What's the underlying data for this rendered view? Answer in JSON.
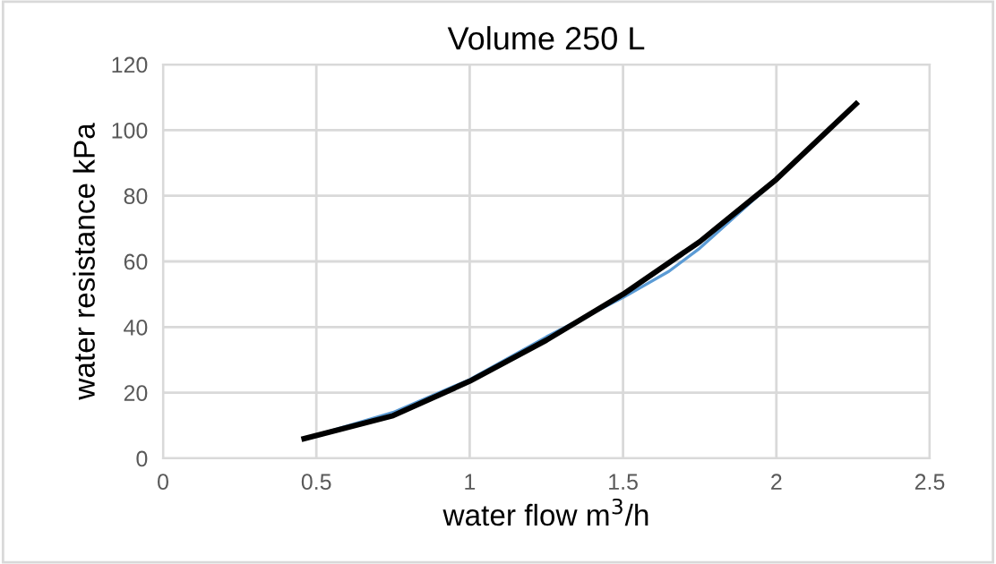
{
  "chart_data": {
    "type": "line",
    "title": "Volume 250 L",
    "xlabel": "water flow m$^{3}$/h",
    "ylabel": "water resistance kPa",
    "series": [
      {
        "color": "#5b9bd5",
        "x": [
          0.46,
          0.75,
          1.0,
          1.25,
          1.5,
          1.65,
          1.75,
          2.0,
          2.26
        ],
        "values": [
          6,
          14,
          24,
          37,
          49,
          57,
          64,
          85,
          108
        ]
      },
      {
        "type": "line",
        "color": "#000000",
        "x": [
          0.46,
          0.75,
          1.0,
          1.25,
          1.5,
          1.75,
          2.0,
          2.26
        ],
        "values": [
          6,
          13,
          23.5,
          36,
          50,
          66,
          85,
          108
        ]
      }
    ],
    "xlim": [
      0,
      2.5
    ],
    "xticks": [
      0,
      0.5,
      1,
      1.5,
      2,
      2.5
    ],
    "ylim": [
      0,
      120
    ],
    "yticks": [
      0,
      20,
      40,
      60,
      80,
      100,
      120
    ],
    "grid": true,
    "marker": "none",
    "line_style": "solid"
  }
}
